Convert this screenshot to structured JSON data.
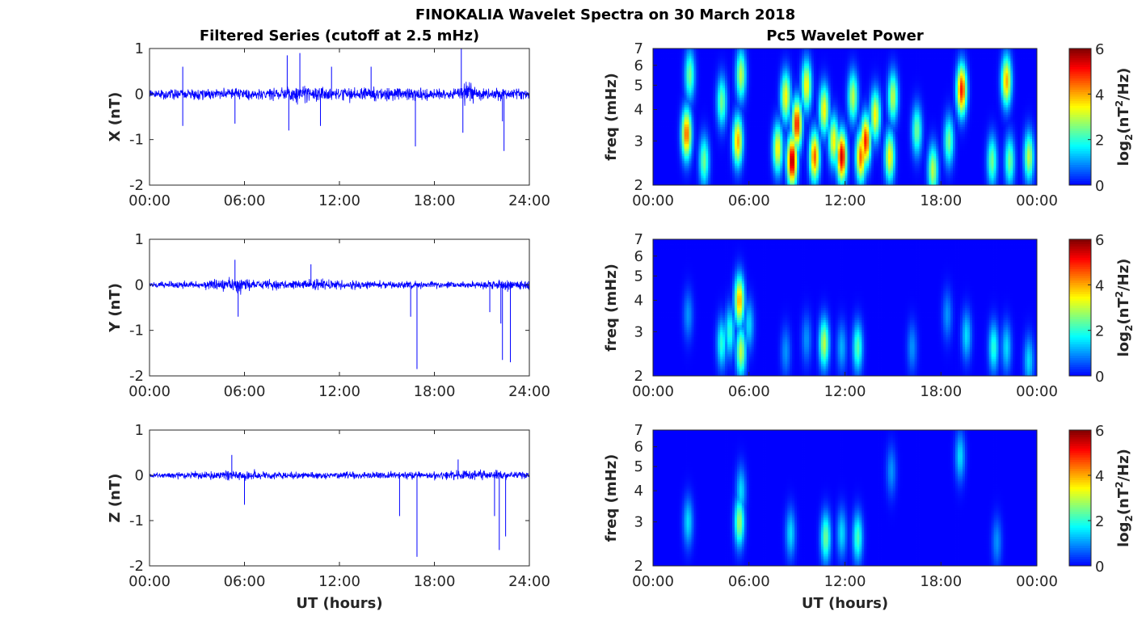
{
  "title": "FINOKALIA Wavelet Spectra on 30 March 2018",
  "colors": {
    "trace": "#0000ff",
    "axis": "#262626",
    "colormap": "jet",
    "colormap_low": "#00008f",
    "colormap_high": "#800000"
  },
  "chart_data": [
    {
      "type": "line",
      "panel": "X",
      "title": "Filtered Series (cutoff at 2.5 mHz)",
      "ylabel": "X (nT)",
      "xlabel": "",
      "ylim": [
        -2,
        1
      ],
      "yticks": [
        "-2",
        "-1",
        "0",
        "1"
      ],
      "xlim": [
        0,
        24
      ],
      "xticks": [
        "00:00",
        "06:00",
        "12:00",
        "18:00",
        "24:00"
      ],
      "noise_envelope": [
        [
          0,
          0.12
        ],
        [
          2,
          0.14
        ],
        [
          4,
          0.16
        ],
        [
          6,
          0.14
        ],
        [
          8,
          0.15
        ],
        [
          9,
          0.24
        ],
        [
          10,
          0.22
        ],
        [
          12,
          0.18
        ],
        [
          14,
          0.2
        ],
        [
          16,
          0.16
        ],
        [
          18,
          0.14
        ],
        [
          19.5,
          0.16
        ],
        [
          20,
          0.3
        ],
        [
          21,
          0.16
        ],
        [
          24,
          0.14
        ]
      ],
      "spikes": [
        [
          2.1,
          0.6
        ],
        [
          2.1,
          -0.7
        ],
        [
          5.4,
          -0.65
        ],
        [
          8.7,
          0.85
        ],
        [
          8.8,
          -0.8
        ],
        [
          9.5,
          0.9
        ],
        [
          10.8,
          -0.7
        ],
        [
          11.5,
          0.6
        ],
        [
          14,
          0.6
        ],
        [
          16.8,
          -1.15
        ],
        [
          19.7,
          1.0
        ],
        [
          19.8,
          -0.85
        ],
        [
          22.3,
          -0.6
        ],
        [
          22.4,
          -1.25
        ],
        [
          24,
          -0.5
        ]
      ]
    },
    {
      "type": "heatmap",
      "panel": "X",
      "title": "Pc5 Wavelet Power",
      "ylabel": "freq (mHz)",
      "yscale": "log",
      "ylim": [
        2,
        7
      ],
      "yticks": [
        "2",
        "3",
        "4",
        "5",
        "6",
        "7"
      ],
      "xlim": [
        0,
        24
      ],
      "xticks": [
        "00:00",
        "06:00",
        "12:00",
        "18:00",
        "00:00"
      ],
      "colorbar_label": "log2(nT^2/Hz)",
      "clim": [
        0,
        6
      ],
      "colorbar_ticks": [
        "0",
        "2",
        "4",
        "6"
      ],
      "blobs": [
        [
          2.1,
          3.2,
          4.5
        ],
        [
          2.3,
          5.5,
          2.5
        ],
        [
          3.2,
          2.5,
          2.5
        ],
        [
          4.3,
          4.3,
          2.5
        ],
        [
          5.3,
          3.0,
          4.0
        ],
        [
          5.5,
          5.5,
          3.0
        ],
        [
          7.8,
          2.8,
          3.5
        ],
        [
          8.3,
          4.5,
          3.5
        ],
        [
          8.7,
          2.5,
          5.8
        ],
        [
          9.0,
          3.5,
          5.0
        ],
        [
          9.6,
          5.0,
          3.5
        ],
        [
          10.1,
          2.6,
          4.5
        ],
        [
          10.7,
          4.0,
          3.5
        ],
        [
          11.3,
          3.0,
          3.5
        ],
        [
          11.8,
          2.6,
          5.5
        ],
        [
          12.5,
          4.5,
          3.0
        ],
        [
          13.0,
          2.6,
          4.5
        ],
        [
          13.3,
          3.0,
          5.0
        ],
        [
          13.9,
          3.8,
          3.5
        ],
        [
          14.8,
          2.6,
          3.5
        ],
        [
          15.0,
          4.5,
          3.0
        ],
        [
          16.5,
          3.3,
          2.5
        ],
        [
          17.5,
          2.3,
          3.0
        ],
        [
          18.5,
          3.0,
          2.5
        ],
        [
          19.3,
          4.8,
          5.0
        ],
        [
          21.2,
          2.5,
          2.5
        ],
        [
          22.1,
          5.2,
          4.0
        ],
        [
          22.3,
          2.5,
          2.5
        ],
        [
          23.5,
          2.6,
          3.0
        ]
      ]
    },
    {
      "type": "line",
      "panel": "Y",
      "title": "",
      "ylabel": "Y (nT)",
      "xlabel": "",
      "ylim": [
        -2,
        1
      ],
      "yticks": [
        "-2",
        "-1",
        "0",
        "1"
      ],
      "xlim": [
        0,
        24
      ],
      "xticks": [
        "00:00",
        "06:00",
        "12:00",
        "18:00",
        "24:00"
      ],
      "noise_envelope": [
        [
          0,
          0.08
        ],
        [
          3,
          0.1
        ],
        [
          4.5,
          0.16
        ],
        [
          5.5,
          0.24
        ],
        [
          6.5,
          0.12
        ],
        [
          9,
          0.12
        ],
        [
          10,
          0.16
        ],
        [
          12,
          0.12
        ],
        [
          16,
          0.1
        ],
        [
          18,
          0.08
        ],
        [
          21,
          0.1
        ],
        [
          22.5,
          0.14
        ],
        [
          24,
          0.12
        ]
      ],
      "spikes": [
        [
          5.4,
          0.55
        ],
        [
          5.6,
          -0.7
        ],
        [
          10.2,
          0.45
        ],
        [
          16.5,
          -0.7
        ],
        [
          16.9,
          -1.85
        ],
        [
          21.5,
          -0.6
        ],
        [
          22.2,
          -0.85
        ],
        [
          22.3,
          -1.65
        ],
        [
          22.8,
          -1.7
        ]
      ]
    },
    {
      "type": "heatmap",
      "panel": "Y",
      "title": "",
      "ylabel": "freq (mHz)",
      "yscale": "log",
      "ylim": [
        2,
        7
      ],
      "yticks": [
        "2",
        "3",
        "4",
        "5",
        "6",
        "7"
      ],
      "xlim": [
        0,
        24
      ],
      "xticks": [
        "00:00",
        "06:00",
        "12:00",
        "18:00",
        "00:00"
      ],
      "colorbar_label": "log2(nT^2/Hz)",
      "clim": [
        0,
        6
      ],
      "colorbar_ticks": [
        "0",
        "2",
        "4",
        "6"
      ],
      "blobs": [
        [
          2.2,
          3.5,
          1.0
        ],
        [
          4.3,
          2.7,
          2.0
        ],
        [
          4.8,
          3.0,
          2.0
        ],
        [
          5.4,
          4.0,
          4.0
        ],
        [
          5.5,
          2.5,
          3.0
        ],
        [
          6.0,
          3.2,
          1.5
        ],
        [
          8.3,
          2.5,
          1.0
        ],
        [
          9.6,
          2.8,
          1.0
        ],
        [
          10.7,
          2.7,
          3.0
        ],
        [
          11.8,
          2.6,
          1.2
        ],
        [
          12.8,
          2.6,
          2.3
        ],
        [
          16.2,
          2.6,
          1.0
        ],
        [
          18.4,
          3.5,
          1.0
        ],
        [
          19.6,
          2.9,
          1.5
        ],
        [
          21.3,
          2.6,
          2.0
        ],
        [
          22.1,
          2.6,
          1.5
        ],
        [
          23.5,
          2.3,
          1.5
        ]
      ]
    },
    {
      "type": "line",
      "panel": "Z",
      "title": "",
      "ylabel": "Z (nT)",
      "xlabel": "UT (hours)",
      "ylim": [
        -2,
        1
      ],
      "yticks": [
        "-2",
        "-1",
        "0",
        "1"
      ],
      "xlim": [
        0,
        24
      ],
      "xticks": [
        "00:00",
        "06:00",
        "12:00",
        "18:00",
        "24:00"
      ],
      "noise_envelope": [
        [
          0,
          0.08
        ],
        [
          3,
          0.1
        ],
        [
          5.5,
          0.14
        ],
        [
          8,
          0.1
        ],
        [
          12,
          0.1
        ],
        [
          16,
          0.1
        ],
        [
          19,
          0.12
        ],
        [
          20,
          0.16
        ],
        [
          22,
          0.12
        ],
        [
          24,
          0.1
        ]
      ],
      "spikes": [
        [
          5.2,
          0.45
        ],
        [
          6.0,
          -0.65
        ],
        [
          15.8,
          -0.9
        ],
        [
          16.9,
          -1.8
        ],
        [
          19.5,
          0.35
        ],
        [
          21.8,
          -0.9
        ],
        [
          22.1,
          -1.65
        ],
        [
          22.5,
          -1.35
        ]
      ]
    },
    {
      "type": "heatmap",
      "panel": "Z",
      "title": "",
      "ylabel": "freq (mHz)",
      "yscale": "log",
      "ylim": [
        2,
        7
      ],
      "yticks": [
        "2",
        "3",
        "4",
        "5",
        "6",
        "7"
      ],
      "xlim": [
        0,
        24
      ],
      "xticks": [
        "00:00",
        "06:00",
        "12:00",
        "18:00",
        "00:00"
      ],
      "xlabel": "UT (hours)",
      "colorbar_label": "log2(nT^2/Hz)",
      "clim": [
        0,
        6
      ],
      "colorbar_ticks": [
        "0",
        "2",
        "4",
        "6"
      ],
      "blobs": [
        [
          2.2,
          3.0,
          1.5
        ],
        [
          5.4,
          3.0,
          2.8
        ],
        [
          5.5,
          4.0,
          1.5
        ],
        [
          8.6,
          2.7,
          1.5
        ],
        [
          10.8,
          2.6,
          2.5
        ],
        [
          11.8,
          2.7,
          1.5
        ],
        [
          12.8,
          2.6,
          2.2
        ],
        [
          14.9,
          4.8,
          1.0
        ],
        [
          19.2,
          5.5,
          1.5
        ],
        [
          21.5,
          2.5,
          1.0
        ]
      ]
    }
  ]
}
